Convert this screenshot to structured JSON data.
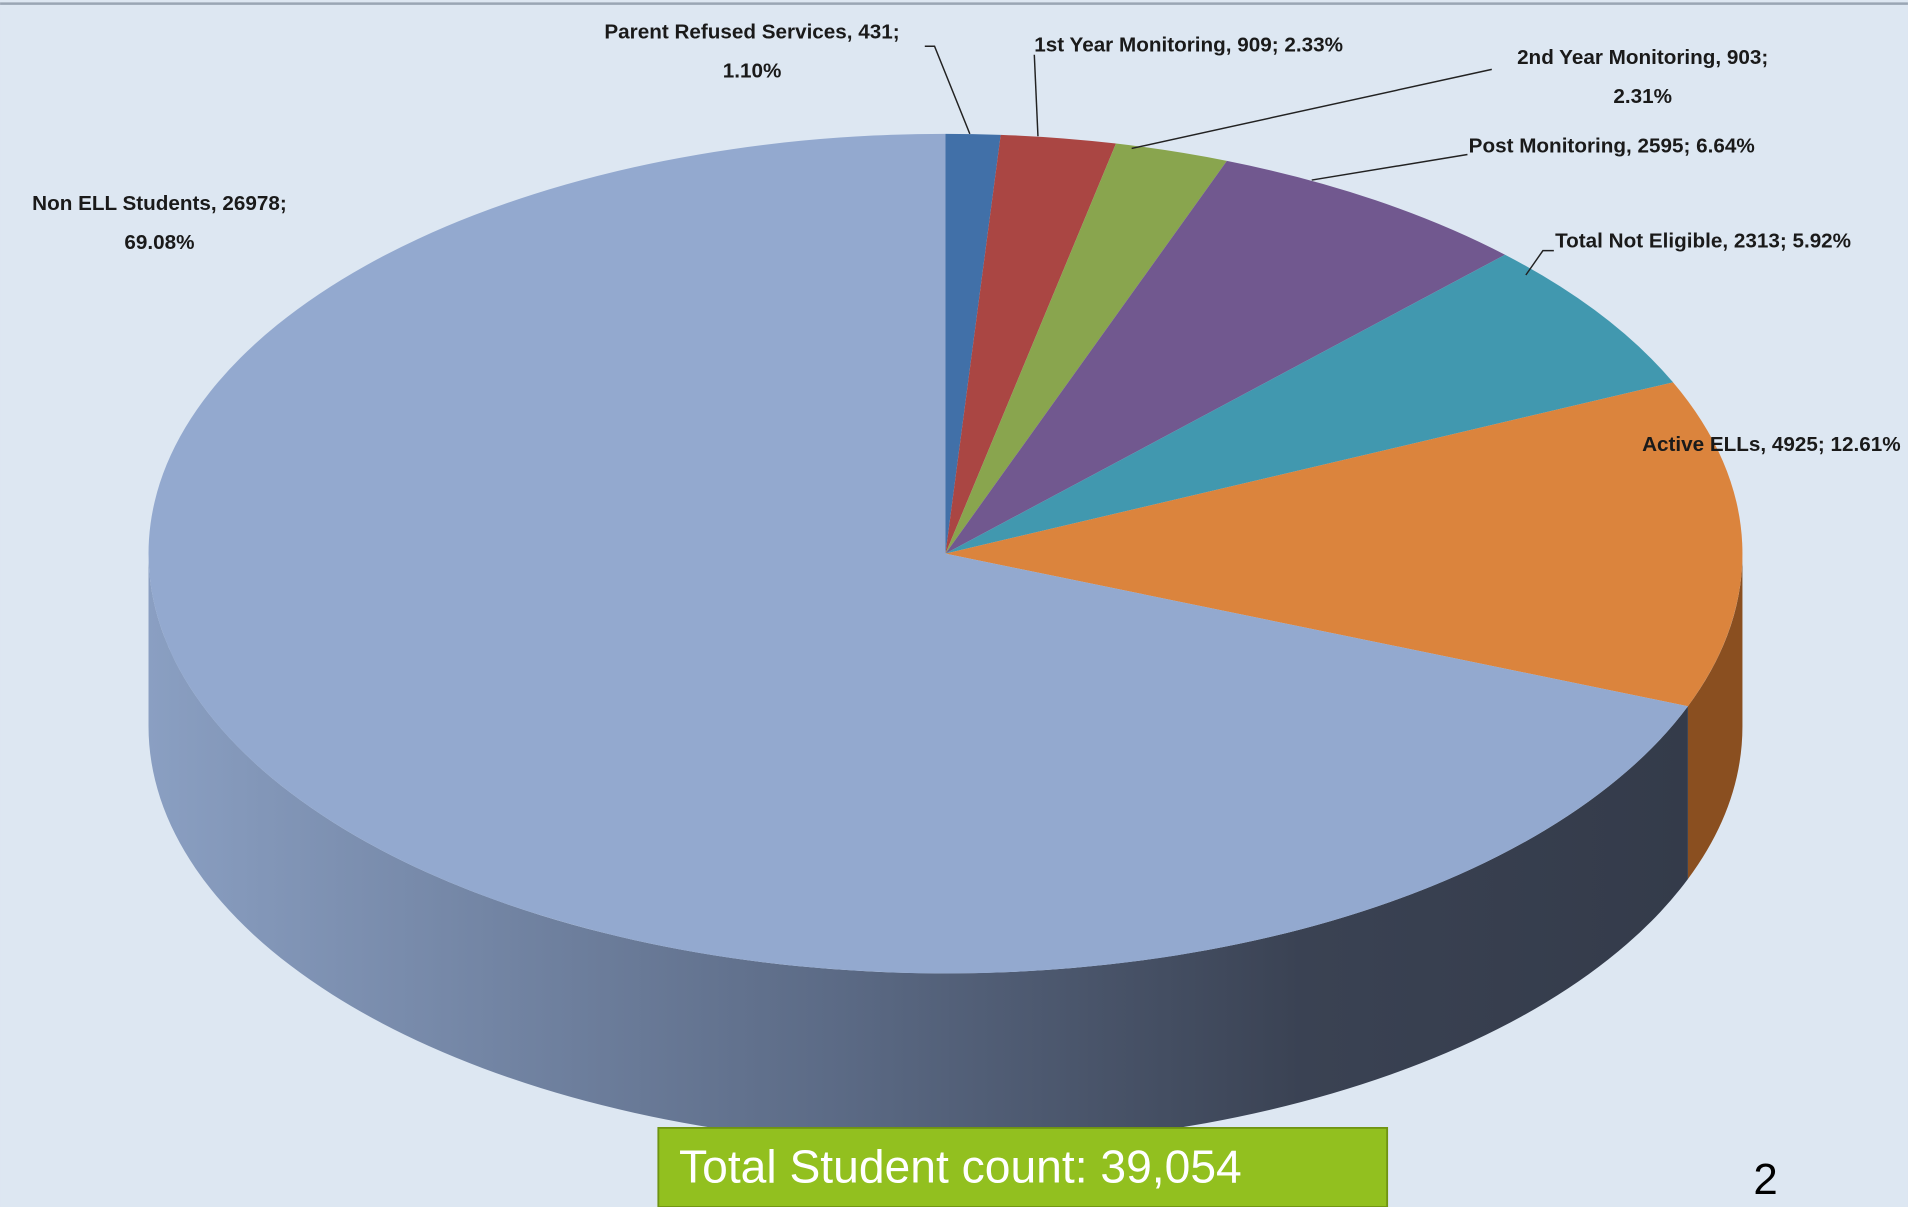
{
  "chart_data": {
    "type": "pie3d",
    "categories": [
      "Parent Refused Services",
      "1st Year Monitoring",
      "2nd Year Monitoring",
      "Post Monitoring",
      "Total Not Eligible",
      "Active ELLs",
      "Non ELL Students"
    ],
    "values": [
      431,
      909,
      903,
      2595,
      2313,
      4925,
      26978
    ],
    "value_labels": [
      [
        "Parent Refused Services, 431;",
        "1.10%"
      ],
      [
        "1st Year Monitoring, 909; 2.33%"
      ],
      [
        "2nd Year Monitoring, 903;",
        "2.31%"
      ],
      [
        "Post Monitoring, 2595; 6.64%"
      ],
      [
        "Total Not Eligible, 2313; 5.92%"
      ],
      [
        "Active ELLs, 4925; 12.61%"
      ],
      [
        "Non ELL Students, 26978;",
        "69.08%"
      ]
    ],
    "colors": [
      "#4170a8",
      "#aa4643",
      "#89a54e",
      "#71588f",
      "#4198af",
      "#db843d",
      "#93a9cf"
    ],
    "annotations": [
      "Total Student count: 39,054",
      "2"
    ]
  }
}
